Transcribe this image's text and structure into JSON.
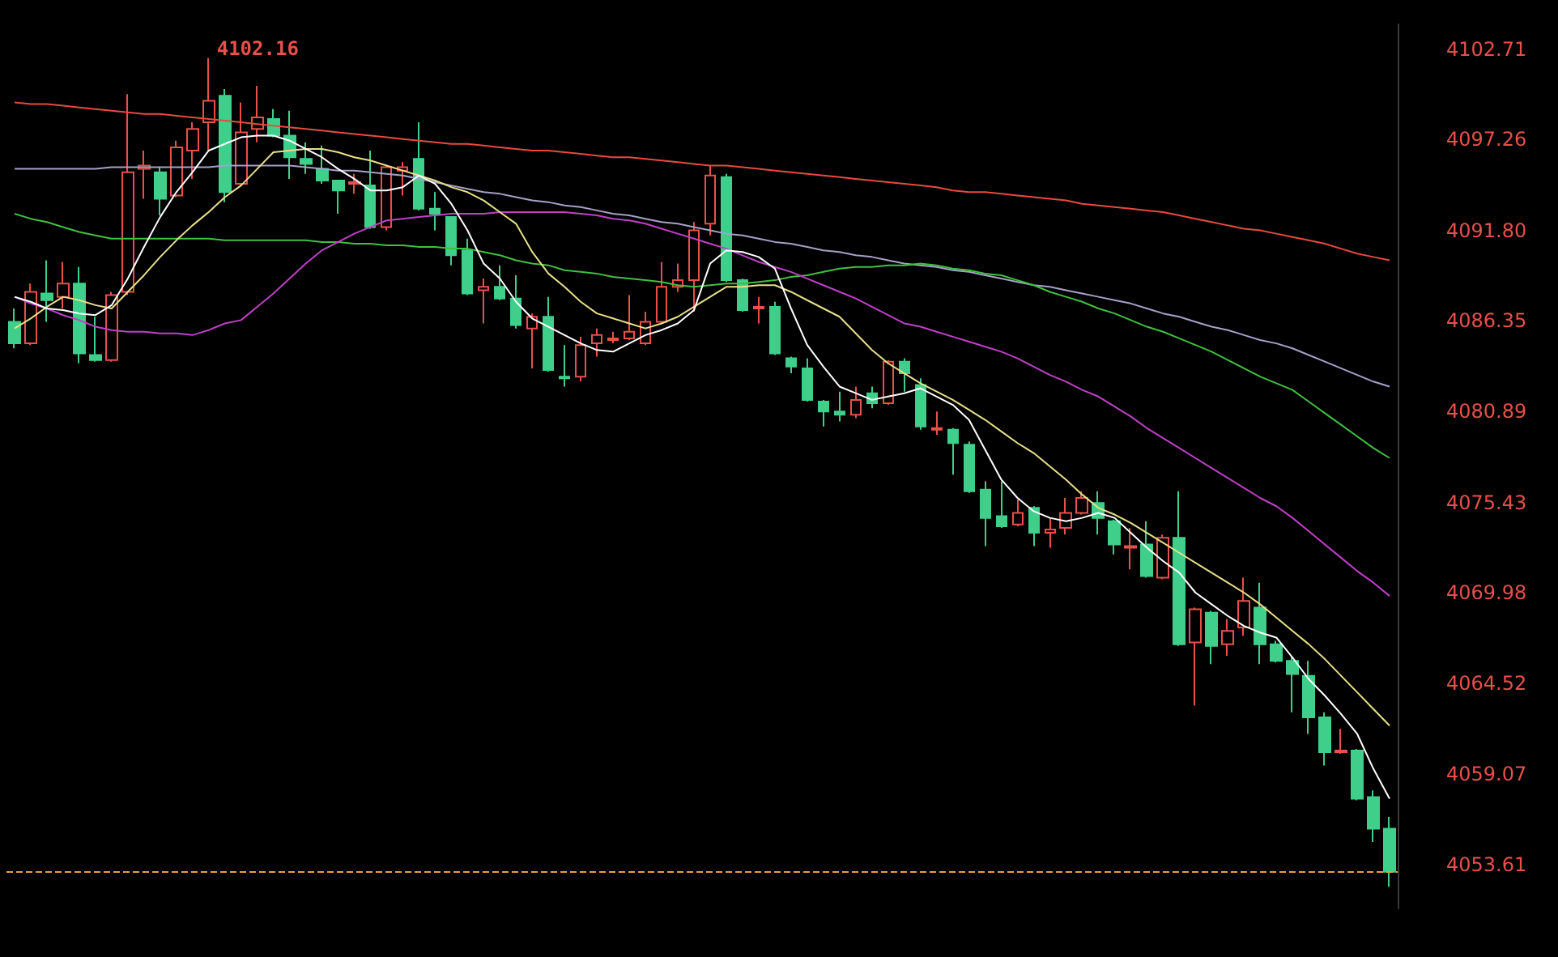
{
  "chart_data": {
    "type": "candlestick",
    "categories": [
      null,
      null,
      null,
      null,
      null,
      null,
      null,
      null,
      null,
      null,
      null,
      null,
      null,
      null,
      null,
      null,
      null,
      null,
      null,
      null,
      null,
      null,
      null,
      null,
      null,
      null,
      null,
      null,
      null,
      null,
      null,
      null,
      null,
      null,
      null,
      null,
      null,
      null,
      null,
      null,
      null,
      null,
      null,
      null,
      null,
      null,
      null,
      null,
      null,
      null,
      null,
      null,
      null,
      null,
      null,
      null,
      null,
      null,
      null,
      null,
      null,
      null,
      null,
      null,
      null,
      null,
      null,
      null,
      null,
      null,
      null,
      null,
      null,
      null,
      null,
      null,
      null,
      null,
      null,
      null,
      null,
      null,
      null,
      null,
      null,
      null
    ],
    "ohlc": [
      [
        4086.3,
        4087.1,
        4084.7,
        4085.0
      ],
      [
        4085.0,
        4088.6,
        4084.9,
        4088.1
      ],
      [
        4088.0,
        4090.0,
        4086.3,
        4087.6
      ],
      [
        4087.8,
        4089.9,
        4087.1,
        4088.6
      ],
      [
        4088.6,
        4089.6,
        4083.8,
        4084.4
      ],
      [
        4084.3,
        4086.6,
        4083.9,
        4084.0
      ],
      [
        4084.0,
        4088.1,
        4083.9,
        4087.9
      ],
      [
        4088.1,
        4100.0,
        4087.9,
        4095.3
      ],
      [
        4095.5,
        4096.6,
        4093.7,
        4095.7
      ],
      [
        4095.3,
        4095.6,
        4092.7,
        4093.7
      ],
      [
        4093.9,
        4097.2,
        4093.8,
        4096.8
      ],
      [
        4096.6,
        4098.3,
        4094.9,
        4097.9
      ],
      [
        4098.3,
        4102.16,
        4096.6,
        4099.6
      ],
      [
        4099.9,
        4100.3,
        4093.5,
        4094.1
      ],
      [
        4094.6,
        4099.5,
        4094.5,
        4097.7
      ],
      [
        4097.9,
        4100.5,
        4097.1,
        4098.6
      ],
      [
        4098.5,
        4099.1,
        4097.4,
        4097.5
      ],
      [
        4097.5,
        4099.0,
        4094.9,
        4096.2
      ],
      [
        4096.1,
        4097.1,
        4095.2,
        4095.8
      ],
      [
        4095.5,
        4096.9,
        4094.6,
        4094.8
      ],
      [
        4094.8,
        4094.8,
        4092.8,
        4094.2
      ],
      [
        4094.6,
        4095.2,
        4094.0,
        4094.7
      ],
      [
        4094.5,
        4096.6,
        4091.9,
        4092.0
      ],
      [
        4092.0,
        4095.7,
        4091.8,
        4095.6
      ],
      [
        4095.4,
        4095.9,
        4093.9,
        4095.6
      ],
      [
        4096.1,
        4098.3,
        4093.0,
        4093.1
      ],
      [
        4093.1,
        4094.1,
        4091.8,
        4092.8
      ],
      [
        4092.6,
        4092.6,
        4089.7,
        4090.3
      ],
      [
        4090.6,
        4091.3,
        4087.9,
        4088.0
      ],
      [
        4088.2,
        4088.9,
        4086.2,
        4088.4
      ],
      [
        4088.4,
        4089.7,
        4087.6,
        4087.7
      ],
      [
        4087.7,
        4089.1,
        4085.9,
        4086.1
      ],
      [
        4085.9,
        4086.8,
        4083.5,
        4086.6
      ],
      [
        4086.6,
        4087.8,
        4083.3,
        4083.4
      ],
      [
        4083.0,
        4084.9,
        4082.4,
        4082.9
      ],
      [
        4083.0,
        4085.4,
        4082.7,
        4084.9
      ],
      [
        4085.0,
        4085.9,
        4084.2,
        4085.5
      ],
      [
        4085.2,
        4085.7,
        4085.0,
        4085.3
      ],
      [
        4085.3,
        4087.9,
        4085.2,
        4085.7
      ],
      [
        4085.0,
        4086.9,
        4084.9,
        4086.3
      ],
      [
        4086.3,
        4089.9,
        4086.2,
        4088.4
      ],
      [
        4088.4,
        4089.8,
        4088.1,
        4088.8
      ],
      [
        4088.8,
        4092.3,
        4086.9,
        4091.8
      ],
      [
        4092.2,
        4095.7,
        4091.5,
        4095.1
      ],
      [
        4095.0,
        4095.2,
        4088.7,
        4088.8
      ],
      [
        4088.8,
        4088.9,
        4086.9,
        4087.0
      ],
      [
        4087.1,
        4087.8,
        4086.2,
        4087.2
      ],
      [
        4087.2,
        4087.5,
        4084.3,
        4084.4
      ],
      [
        4084.1,
        4084.2,
        4083.2,
        4083.6
      ],
      [
        4083.5,
        4084.1,
        4081.5,
        4081.6
      ],
      [
        4081.5,
        4081.6,
        4080.0,
        4080.9
      ],
      [
        4080.9,
        4082.1,
        4080.3,
        4080.7
      ],
      [
        4080.7,
        4082.4,
        4080.5,
        4081.6
      ],
      [
        4082.0,
        4082.4,
        4081.1,
        4081.4
      ],
      [
        4081.4,
        4084.0,
        4081.3,
        4083.9
      ],
      [
        4083.9,
        4084.1,
        4082.1,
        4083.2
      ],
      [
        4082.5,
        4082.9,
        4079.8,
        4080.0
      ],
      [
        4079.8,
        4080.9,
        4079.5,
        4079.9
      ],
      [
        4079.8,
        4079.9,
        4077.1,
        4079.0
      ],
      [
        4078.9,
        4079.1,
        4076.0,
        4076.1
      ],
      [
        4076.2,
        4076.7,
        4072.8,
        4074.5
      ],
      [
        4074.6,
        4076.7,
        4073.9,
        4074.0
      ],
      [
        4074.1,
        4075.6,
        4074.0,
        4074.8
      ],
      [
        4075.1,
        4075.2,
        4072.8,
        4073.6
      ],
      [
        4073.6,
        4074.5,
        4072.7,
        4073.8
      ],
      [
        4073.9,
        4075.7,
        4073.5,
        4074.8
      ],
      [
        4074.8,
        4076.1,
        4074.7,
        4075.7
      ],
      [
        4075.4,
        4076.1,
        4073.5,
        4074.5
      ],
      [
        4074.3,
        4074.4,
        4072.3,
        4072.9
      ],
      [
        4072.7,
        4073.9,
        4071.4,
        4072.8
      ],
      [
        4072.9,
        4074.3,
        4070.9,
        4071.0
      ],
      [
        4070.9,
        4073.5,
        4070.8,
        4073.3
      ],
      [
        4073.3,
        4076.1,
        4066.8,
        4066.9
      ],
      [
        4067.0,
        4069.1,
        4063.2,
        4069.0
      ],
      [
        4068.8,
        4068.9,
        4065.7,
        4066.8
      ],
      [
        4066.9,
        4068.4,
        4066.2,
        4067.7
      ],
      [
        4067.9,
        4070.9,
        4067.4,
        4069.5
      ],
      [
        4069.1,
        4070.6,
        4065.7,
        4066.9
      ],
      [
        4066.9,
        4067.1,
        4065.8,
        4065.9
      ],
      [
        4065.9,
        4066.2,
        4062.8,
        4065.1
      ],
      [
        4065.0,
        4065.9,
        4061.5,
        4062.5
      ],
      [
        4062.5,
        4062.8,
        4059.6,
        4060.4
      ],
      [
        4060.4,
        4061.8,
        4060.3,
        4060.5
      ],
      [
        4060.5,
        4060.6,
        4057.5,
        4057.6
      ],
      [
        4057.7,
        4058.1,
        4055.0,
        4055.8
      ],
      [
        4055.8,
        4056.5,
        4052.3,
        4053.2
      ]
    ],
    "colors": [
      "#3fcf8a",
      "#e8504a",
      "#3fcf8a",
      "#e8504a",
      "#3fcf8a",
      "#3fcf8a",
      "#e8504a",
      "#e8504a",
      "#e8504a",
      "#3fcf8a",
      "#e8504a",
      "#e8504a",
      "#e8504a",
      "#3fcf8a",
      "#e8504a",
      "#e8504a",
      "#3fcf8a",
      "#3fcf8a",
      "#3fcf8a",
      "#3fcf8a",
      "#3fcf8a",
      "#e8504a",
      "#3fcf8a",
      "#e8504a",
      "#e8504a",
      "#3fcf8a",
      "#3fcf8a",
      "#3fcf8a",
      "#3fcf8a",
      "#e8504a",
      "#3fcf8a",
      "#3fcf8a",
      "#e8504a",
      "#3fcf8a",
      "#3fcf8a",
      "#e8504a",
      "#e8504a",
      "#e8504a",
      "#e8504a",
      "#e8504a",
      "#e8504a",
      "#e8504a",
      "#e8504a",
      "#e8504a",
      "#3fcf8a",
      "#3fcf8a",
      "#e8504a",
      "#3fcf8a",
      "#3fcf8a",
      "#3fcf8a",
      "#3fcf8a",
      "#3fcf8a",
      "#e8504a",
      "#3fcf8a",
      "#e8504a",
      "#3fcf8a",
      "#3fcf8a",
      "#e8504a",
      "#3fcf8a",
      "#3fcf8a",
      "#3fcf8a",
      "#3fcf8a",
      "#e8504a",
      "#3fcf8a",
      "#e8504a",
      "#e8504a",
      "#e8504a",
      "#3fcf8a",
      "#3fcf8a",
      "#e8504a",
      "#3fcf8a",
      "#e8504a",
      "#3fcf8a",
      "#e8504a",
      "#3fcf8a",
      "#e8504a",
      "#e8504a",
      "#3fcf8a",
      "#3fcf8a",
      "#3fcf8a",
      "#3fcf8a",
      "#3fcf8a",
      "#e8504a",
      "#3fcf8a",
      "#3fcf8a",
      "#3fcf8a"
    ],
    "series": [
      {
        "type": "line",
        "color": "#e84a40",
        "values": [
          4099.5,
          4099.4,
          4099.4,
          4099.3,
          4099.2,
          4099.1,
          4099.0,
          4098.9,
          4098.8,
          4098.8,
          4098.7,
          4098.6,
          4098.5,
          4098.4,
          4098.3,
          4098.2,
          4098.1,
          4098.0,
          4097.9,
          4097.8,
          4097.7,
          4097.6,
          4097.5,
          4097.4,
          4097.3,
          4097.2,
          4097.1,
          4097.0,
          4097.0,
          4096.9,
          4096.8,
          4096.7,
          4096.6,
          4096.6,
          4096.5,
          4096.4,
          4096.3,
          4096.2,
          4096.2,
          4096.1,
          4096.0,
          4095.9,
          4095.8,
          4095.7,
          4095.7,
          4095.6,
          4095.5,
          4095.4,
          4095.3,
          4095.2,
          4095.1,
          4095.0,
          4094.9,
          4094.8,
          4094.7,
          4094.6,
          4094.5,
          4094.4,
          4094.2,
          4094.1,
          4094.1,
          4094.0,
          4093.9,
          4093.8,
          4093.7,
          4093.6,
          4093.4,
          4093.3,
          4093.2,
          4093.1,
          4093.0,
          4092.9,
          4092.7,
          4092.5,
          4092.3,
          4092.1,
          4091.9,
          4091.8,
          4091.6,
          4091.4,
          4091.2,
          4091.0,
          4090.7,
          4090.4,
          4090.2,
          4090.0
        ]
      },
      {
        "type": "line",
        "color": "#a8a0c8",
        "values": [
          4095.5,
          4095.5,
          4095.5,
          4095.5,
          4095.5,
          4095.5,
          4095.6,
          4095.6,
          4095.6,
          4095.6,
          4095.6,
          4095.6,
          4095.6,
          4095.7,
          4095.7,
          4095.7,
          4095.7,
          4095.7,
          4095.6,
          4095.5,
          4095.4,
          4095.4,
          4095.3,
          4095.2,
          4095.1,
          4094.9,
          4094.7,
          4094.5,
          4094.3,
          4094.1,
          4094.0,
          4093.8,
          4093.6,
          4093.5,
          4093.3,
          4093.2,
          4093.0,
          4092.8,
          4092.7,
          4092.5,
          4092.3,
          4092.2,
          4092.0,
          4091.8,
          4091.6,
          4091.5,
          4091.3,
          4091.1,
          4091.0,
          4090.8,
          4090.6,
          4090.5,
          4090.3,
          4090.2,
          4090.0,
          4089.8,
          4089.7,
          4089.6,
          4089.4,
          4089.3,
          4089.1,
          4088.9,
          4088.7,
          4088.5,
          4088.4,
          4088.2,
          4088.0,
          4087.8,
          4087.6,
          4087.4,
          4087.1,
          4086.8,
          4086.6,
          4086.3,
          4086.0,
          4085.8,
          4085.5,
          4085.2,
          4085.0,
          4084.7,
          4084.3,
          4083.9,
          4083.5,
          4083.1,
          4082.7,
          4082.4
        ]
      },
      {
        "type": "line",
        "color": "#40c040",
        "values": [
          4092.8,
          4092.5,
          4092.3,
          4092.0,
          4091.7,
          4091.5,
          4091.3,
          4091.3,
          4091.3,
          4091.3,
          4091.3,
          4091.3,
          4091.3,
          4091.2,
          4091.2,
          4091.2,
          4091.2,
          4091.2,
          4091.2,
          4091.1,
          4091.1,
          4091.0,
          4091.0,
          4090.9,
          4090.9,
          4090.8,
          4090.8,
          4090.7,
          4090.7,
          4090.5,
          4090.3,
          4090.0,
          4089.8,
          4089.7,
          4089.4,
          4089.3,
          4089.2,
          4089.0,
          4088.9,
          4088.8,
          4088.7,
          4088.5,
          4088.4,
          4088.5,
          4088.6,
          4088.6,
          4088.7,
          4088.8,
          4089.0,
          4089.1,
          4089.3,
          4089.5,
          4089.6,
          4089.6,
          4089.7,
          4089.7,
          4089.8,
          4089.7,
          4089.5,
          4089.4,
          4089.2,
          4089.1,
          4088.8,
          4088.5,
          4088.1,
          4087.8,
          4087.5,
          4087.1,
          4086.8,
          4086.4,
          4086.0,
          4085.7,
          4085.3,
          4084.9,
          4084.5,
          4084.0,
          4083.5,
          4083.0,
          4082.6,
          4082.2,
          4081.5,
          4080.8,
          4080.1,
          4079.4,
          4078.7,
          4078.1
        ]
      },
      {
        "type": "line",
        "color": "#c040c8",
        "values": [
          4087.8,
          4087.4,
          4087.1,
          4086.7,
          4086.4,
          4086.0,
          4085.8,
          4085.7,
          4085.7,
          4085.6,
          4085.6,
          4085.5,
          4085.8,
          4086.2,
          4086.4,
          4087.2,
          4088.0,
          4088.9,
          4089.8,
          4090.6,
          4091.1,
          4091.6,
          4092.0,
          4092.4,
          4092.5,
          4092.6,
          4092.7,
          4092.8,
          4092.8,
          4092.8,
          4092.9,
          4092.9,
          4092.9,
          4092.9,
          4092.9,
          4092.8,
          4092.7,
          4092.5,
          4092.4,
          4092.2,
          4091.9,
          4091.6,
          4091.3,
          4091.0,
          4090.7,
          4090.3,
          4089.9,
          4089.6,
          4089.3,
          4088.9,
          4088.5,
          4088.1,
          4087.7,
          4087.2,
          4086.7,
          4086.2,
          4086.0,
          4085.7,
          4085.4,
          4085.1,
          4084.8,
          4084.5,
          4084.1,
          4083.6,
          4083.1,
          4082.7,
          4082.2,
          4081.8,
          4081.2,
          4080.6,
          4079.9,
          4079.3,
          4078.7,
          4078.1,
          4077.5,
          4076.9,
          4076.3,
          4075.7,
          4075.2,
          4074.5,
          4073.7,
          4072.9,
          4072.1,
          4071.3,
          4070.6,
          4069.8
        ]
      },
      {
        "type": "line",
        "color": "#e8e08a",
        "values": [
          4085.9,
          4086.5,
          4087.2,
          4087.8,
          4087.6,
          4087.3,
          4087.1,
          4088.1,
          4089.1,
          4090.2,
          4091.2,
          4092.1,
          4092.9,
          4093.8,
          4094.5,
          4095.5,
          4096.5,
          4096.6,
          4096.7,
          4096.7,
          4096.5,
          4096.2,
          4096.0,
          4095.7,
          4095.4,
          4095.1,
          4094.8,
          4094.4,
          4094.1,
          4093.6,
          4092.9,
          4092.2,
          4090.5,
          4089.2,
          4088.4,
          4087.5,
          4086.8,
          4086.5,
          4086.2,
          4085.9,
          4086.2,
          4086.6,
          4087.2,
          4087.8,
          4088.4,
          4088.4,
          4088.5,
          4088.5,
          4088.1,
          4087.6,
          4087.1,
          4086.6,
          4085.6,
          4084.6,
          4083.8,
          4083.2,
          4082.6,
          4082.1,
          4081.6,
          4081.0,
          4080.4,
          4079.7,
          4079.0,
          4078.4,
          4077.6,
          4076.8,
          4075.9,
          4075.1,
          4074.7,
          4074.2,
          4073.6,
          4073.0,
          4072.4,
          4071.8,
          4071.2,
          4070.6,
          4070.0,
          4069.3,
          4068.5,
          4067.7,
          4066.9,
          4066.0,
          4065.0,
          4064.0,
          4063.0,
          4062.0
        ]
      },
      {
        "type": "line",
        "color": "#ffffff",
        "values": [
          4087.8,
          4087.5,
          4087.1,
          4087.0,
          4086.8,
          4086.7,
          4087.3,
          4088.9,
          4090.8,
          4092.6,
          4094.1,
          4095.3,
          4096.6,
          4097.0,
          4097.4,
          4097.5,
          4097.5,
          4097.2,
          4096.7,
          4096.2,
          4095.5,
          4094.9,
          4094.2,
          4094.2,
          4094.4,
          4095.1,
          4094.6,
          4093.4,
          4091.8,
          4089.8,
          4088.9,
          4087.5,
          4086.5,
          4086.0,
          4085.5,
          4085.0,
          4084.6,
          4084.5,
          4085.0,
          4085.5,
          4085.8,
          4086.2,
          4087.0,
          4089.8,
          4090.6,
          4090.5,
          4090.2,
          4089.5,
          4087.1,
          4084.9,
          4083.6,
          4082.4,
          4082.0,
          4081.6,
          4081.8,
          4082.0,
          4082.3,
          4081.8,
          4081.3,
          4080.4,
          4078.6,
          4076.8,
          4075.7,
          4074.9,
          4074.5,
          4074.3,
          4074.5,
          4074.8,
          4074.5,
          4073.6,
          4072.7,
          4071.9,
          4071.2,
          4070.0,
          4069.3,
          4068.6,
          4068.0,
          4067.6,
          4067.3,
          4066.1,
          4064.8,
          4063.8,
          4062.7,
          4061.5,
          4059.4,
          4057.6
        ]
      }
    ],
    "ylim": [
      4051.0,
      4104.2
    ],
    "yticks": [
      4053.61,
      4059.07,
      4064.52,
      4069.98,
      4075.43,
      {
        "value": 4080.89,
        "label": "4080.89"
      },
      4086.35,
      {
        "value": 4091.8,
        "label": "4091.80"
      },
      4097.26,
      4102.71
    ],
    "tick_labels": "y",
    "grid": false,
    "marker": "none",
    "line_style": "solid",
    "ref_lines": [
      {
        "axis": "y",
        "value": 4053.2,
        "color": "#e8a040",
        "line_style": "dashed"
      }
    ],
    "annotations": [
      "4102.16"
    ]
  }
}
